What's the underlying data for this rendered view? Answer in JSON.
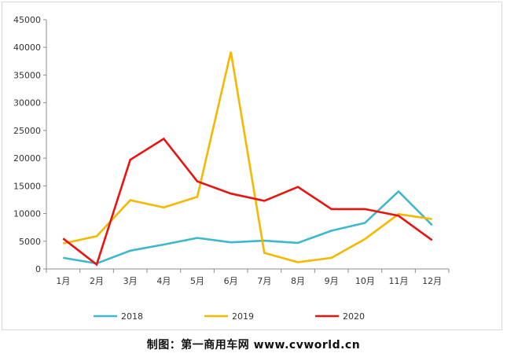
{
  "chart_data": {
    "type": "line",
    "categories": [
      "1月",
      "2月",
      "3月",
      "4月",
      "5月",
      "6月",
      "7月",
      "8月",
      "9月",
      "10月",
      "11月",
      "12月"
    ],
    "ylim": [
      0,
      45000
    ],
    "yticks": [
      0,
      5000,
      10000,
      15000,
      20000,
      25000,
      30000,
      35000,
      40000,
      45000
    ],
    "grid": false,
    "legend_position": "bottom",
    "series": [
      {
        "name": "2018",
        "color": "#3db8cc",
        "values": [
          2000,
          1000,
          3300,
          4400,
          5600,
          4800,
          5100,
          4700,
          6900,
          8300,
          14000,
          7900
        ]
      },
      {
        "name": "2019",
        "color": "#f5b800",
        "values": [
          4600,
          5900,
          12400,
          11100,
          13000,
          39200,
          2900,
          1200,
          2000,
          5400,
          9900,
          9000
        ]
      },
      {
        "name": "2020",
        "color": "#e8140e",
        "values": [
          5500,
          800,
          19700,
          23500,
          15800,
          13600,
          12300,
          14800,
          10800,
          10800,
          9600,
          5200
        ]
      }
    ]
  },
  "credit": "制图：第一商用车网 www.cvworld.cn"
}
